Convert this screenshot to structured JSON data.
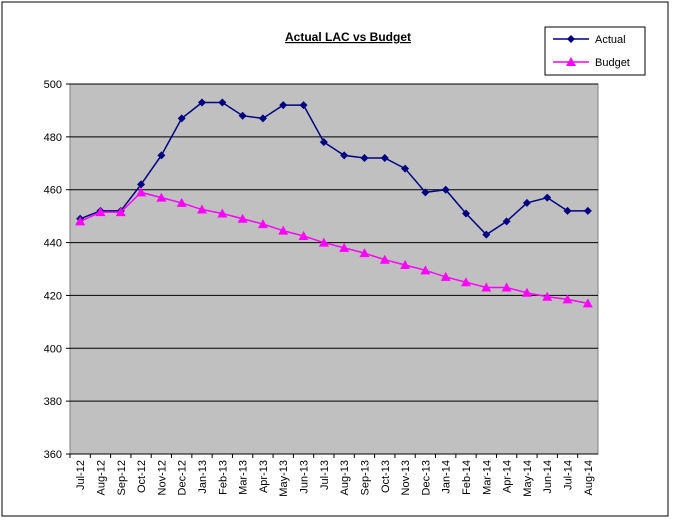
{
  "chart_data": {
    "type": "line",
    "title": "Actual LAC vs Budget",
    "categories": [
      "Jul-12",
      "Aug-12",
      "Sep-12",
      "Oct-12",
      "Nov-12",
      "Dec-12",
      "Jan-13",
      "Feb-13",
      "Mar-13",
      "Apr-13",
      "May-13",
      "Jun-13",
      "Jul-13",
      "Aug-13",
      "Sep-13",
      "Oct-13",
      "Nov-13",
      "Dec-13",
      "Jan-14",
      "Feb-14",
      "Mar-14",
      "Apr-14",
      "May-14",
      "Jun-14",
      "Jul-14",
      "Aug-14"
    ],
    "series": [
      {
        "name": "Actual",
        "color": "#000080",
        "marker": "diamond",
        "values": [
          449,
          452,
          452,
          462,
          473,
          487,
          493,
          493,
          488,
          487,
          492,
          492,
          478,
          473,
          472,
          472,
          468,
          459,
          460,
          451,
          443,
          448,
          455,
          457,
          452,
          452
        ]
      },
      {
        "name": "Budget",
        "color": "#ff00ff",
        "marker": "triangle",
        "values": [
          448,
          451.5,
          451.5,
          459,
          457,
          455,
          452.5,
          451,
          449,
          447,
          444.5,
          442.5,
          440,
          438,
          436,
          433.5,
          431.5,
          429.5,
          427,
          425,
          423,
          423,
          421,
          419.5,
          418.5,
          417
        ]
      }
    ],
    "ylim": [
      360,
      500
    ],
    "yticks": [
      360,
      380,
      400,
      420,
      440,
      460,
      480,
      500
    ],
    "grid": true,
    "legend": "top-right",
    "plot_background": "#c0c0c0"
  }
}
